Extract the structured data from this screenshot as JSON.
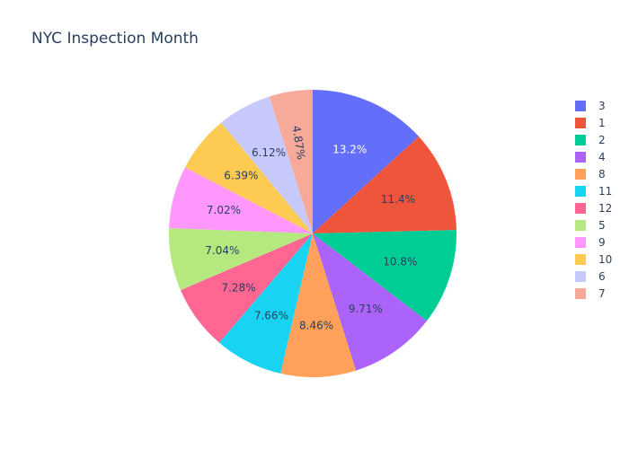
{
  "chart_data": {
    "type": "pie",
    "title": "NYC Inspection Month",
    "direction": "clockwise",
    "sort": "descending",
    "slices": [
      {
        "label": "3",
        "percent": 13.2,
        "text": "13.2%",
        "color": "#636efa"
      },
      {
        "label": "1",
        "percent": 11.4,
        "text": "11.4%",
        "color": "#EF553B"
      },
      {
        "label": "2",
        "percent": 10.8,
        "text": "10.8%",
        "color": "#00cc96"
      },
      {
        "label": "4",
        "percent": 9.71,
        "text": "9.71%",
        "color": "#ab63fa"
      },
      {
        "label": "8",
        "percent": 8.46,
        "text": "8.46%",
        "color": "#FFA15A"
      },
      {
        "label": "11",
        "percent": 7.66,
        "text": "7.66%",
        "color": "#19d3f3"
      },
      {
        "label": "12",
        "percent": 7.28,
        "text": "7.28%",
        "color": "#FF6692"
      },
      {
        "label": "5",
        "percent": 7.04,
        "text": "7.04%",
        "color": "#B6E880"
      },
      {
        "label": "9",
        "percent": 7.02,
        "text": "7.02%",
        "color": "#FF97FF"
      },
      {
        "label": "10",
        "percent": 6.39,
        "text": "6.39%",
        "color": "#FECB52"
      },
      {
        "label": "6",
        "percent": 6.12,
        "text": "6.12%",
        "color": "#c8c9fb"
      },
      {
        "label": "7",
        "percent": 4.87,
        "text": "4.87%",
        "color": "#f7a99a"
      }
    ],
    "legend_placement": "right"
  }
}
